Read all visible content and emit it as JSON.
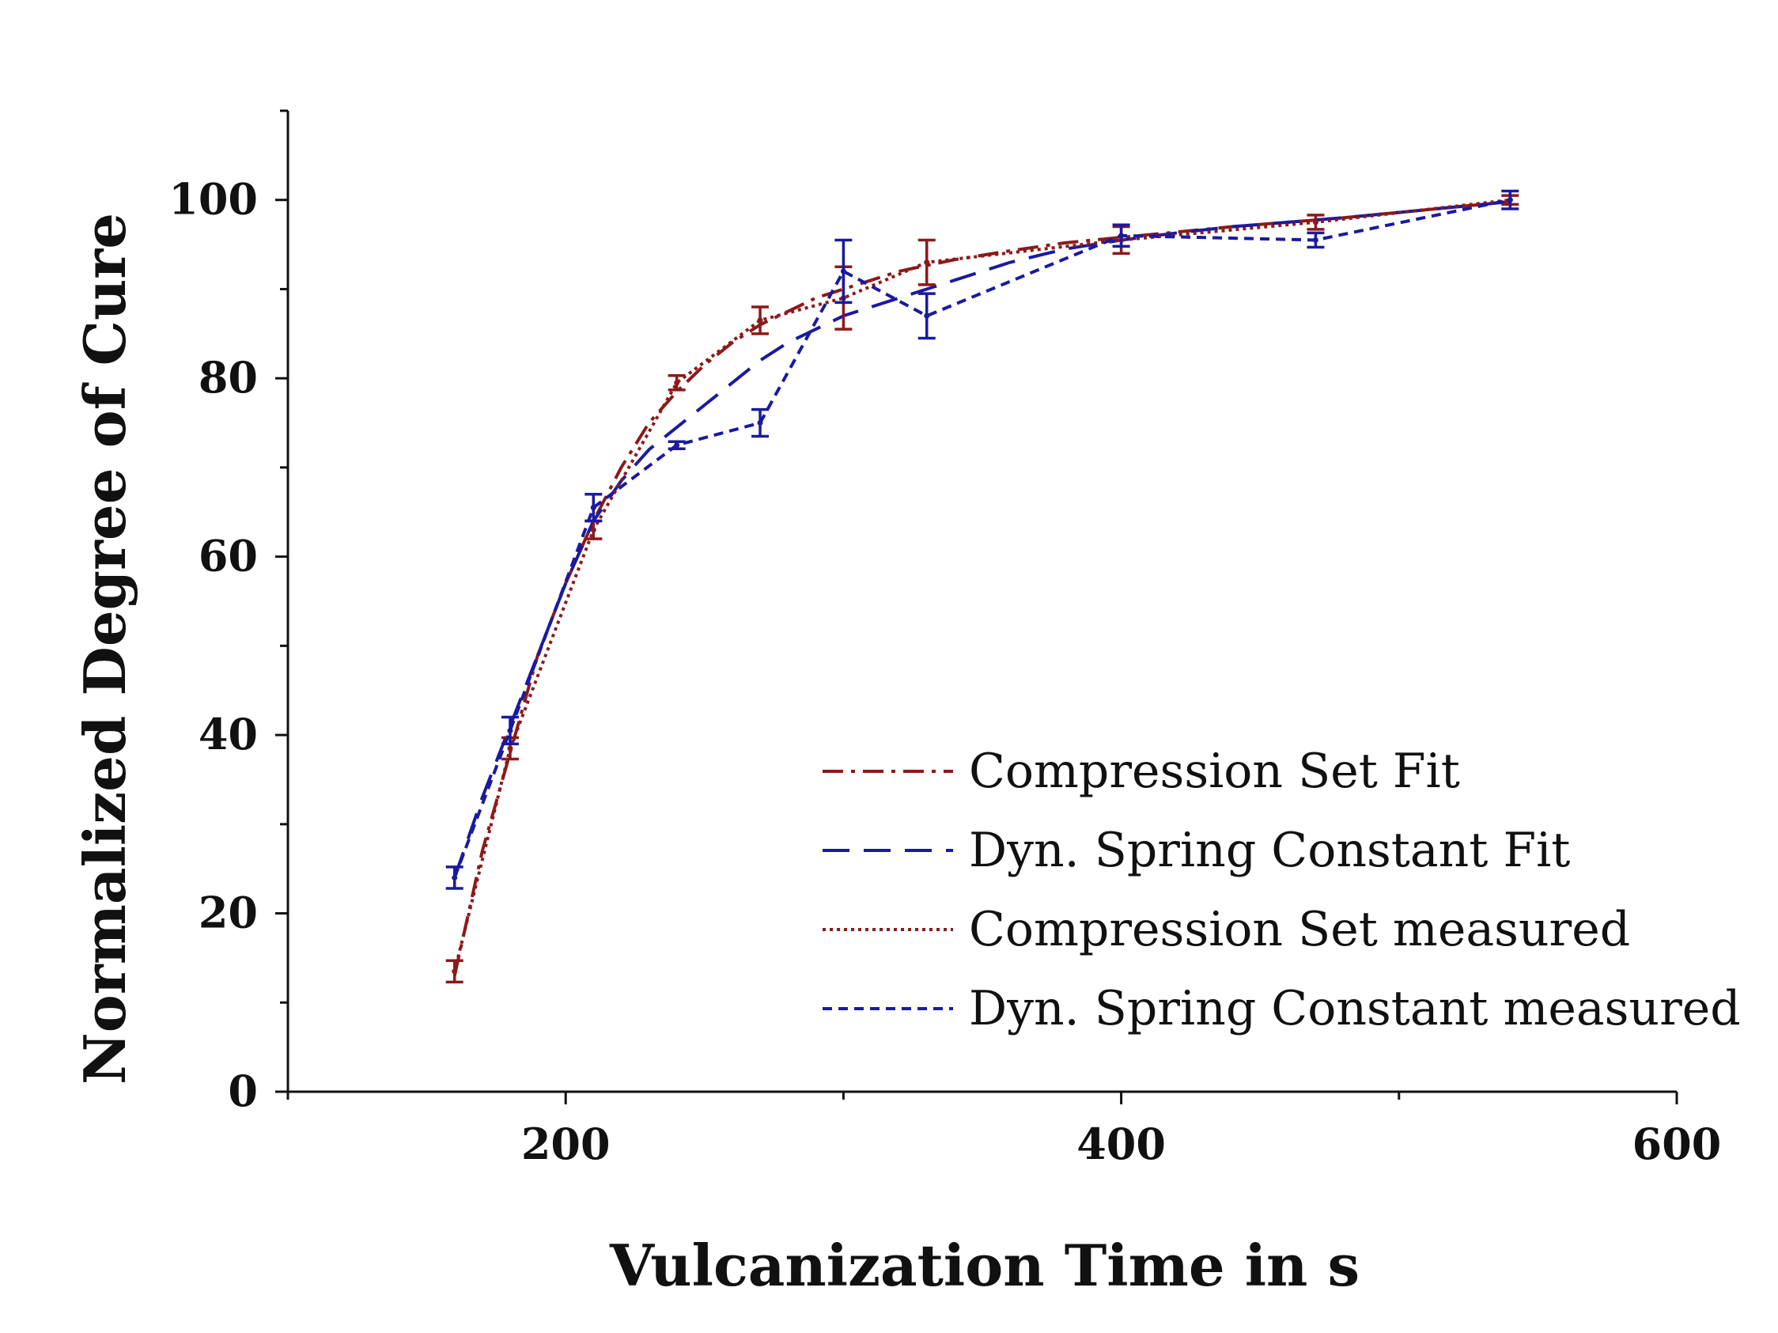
{
  "chart_data": {
    "type": "line",
    "title": "",
    "xlabel": "Vulcanization Time in s",
    "ylabel": "Normalized Degree of Cure",
    "xlim": [
      100,
      600
    ],
    "ylim": [
      0,
      110
    ],
    "x_ticks": [
      200,
      400,
      600
    ],
    "x_minor_ticks": [
      100,
      300,
      500
    ],
    "y_ticks": [
      0,
      20,
      40,
      60,
      80,
      100
    ],
    "y_minor_ticks": [
      10,
      30,
      50,
      70,
      90,
      110
    ],
    "legend_position": "bottom-right",
    "series": [
      {
        "name": "Compression Set Fit",
        "style": "dash-dot",
        "color": "#8b1a1a",
        "x": [
          160,
          170,
          180,
          190,
          200,
          210,
          220,
          230,
          240,
          250,
          260,
          270,
          280,
          290,
          300,
          320,
          340,
          360,
          380,
          400,
          420,
          440,
          460,
          480,
          500,
          520,
          540
        ],
        "y": [
          13,
          27,
          38,
          49,
          57,
          64,
          70,
          75,
          78.5,
          81.5,
          84,
          86,
          87.5,
          89,
          90,
          92,
          93.3,
          94.3,
          95.2,
          95.8,
          96.4,
          97,
          97.5,
          98,
          98.6,
          99.2,
          99.8
        ]
      },
      {
        "name": "Dyn. Spring Constant Fit",
        "style": "long-dash",
        "color": "#1a1aa0",
        "x": [
          160,
          170,
          180,
          190,
          200,
          210,
          220,
          230,
          240,
          250,
          260,
          270,
          280,
          290,
          300,
          320,
          340,
          360,
          380,
          400,
          420,
          440,
          460,
          480,
          500,
          520,
          540
        ],
        "y": [
          24,
          33,
          41,
          49,
          57,
          64,
          68.5,
          72,
          74.5,
          77,
          79.5,
          82,
          84,
          85.5,
          87,
          89,
          91,
          93,
          94.5,
          95.5,
          96.3,
          97,
          97.5,
          98,
          98.6,
          99.2,
          99.8
        ]
      },
      {
        "name": "Compression Set measured",
        "style": "dotted",
        "color": "#8b1a1a",
        "x": [
          160,
          180,
          210,
          240,
          270,
          300,
          330,
          400,
          470,
          540
        ],
        "y": [
          13.5,
          38.5,
          63,
          79.5,
          86.5,
          89,
          93,
          95.5,
          97.5,
          100
        ],
        "errors": [
          1.2,
          1.2,
          1.0,
          0.8,
          1.5,
          3.5,
          2.5,
          1.5,
          0.8,
          0.5
        ]
      },
      {
        "name": "Dyn. Spring Constant measured",
        "style": "short-dash",
        "color": "#1a1aa0",
        "x": [
          160,
          180,
          210,
          240,
          270,
          300,
          330,
          400,
          470,
          540
        ],
        "y": [
          24,
          40.5,
          65.5,
          72.5,
          75,
          92,
          87,
          96,
          95.5,
          100
        ],
        "errors": [
          1.2,
          1.5,
          1.5,
          0.4,
          1.5,
          3.5,
          2.5,
          1.2,
          0.8,
          1.0
        ]
      }
    ]
  }
}
